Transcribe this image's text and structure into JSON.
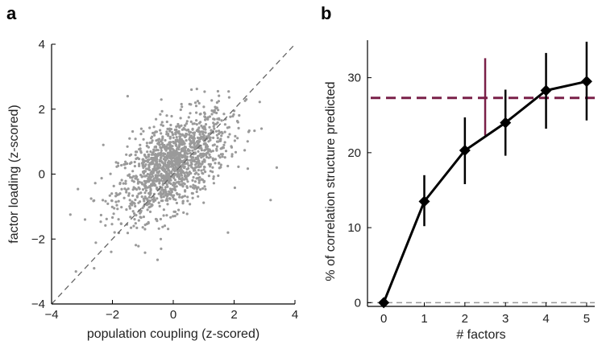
{
  "chart_data": [
    {
      "panel": "a",
      "type": "scatter",
      "xlabel": "population coupling (z-scored)",
      "ylabel": "factor loading (z-scored)",
      "xlim": [
        -4,
        4
      ],
      "ylim": [
        -4,
        4
      ],
      "xticks": [
        "−4",
        "−2",
        "0",
        "2",
        "4"
      ],
      "yticks": [
        "−4",
        "−2",
        "0",
        "2",
        "4"
      ],
      "identity_line": {
        "from": [
          -4,
          -4
        ],
        "to": [
          4,
          4
        ],
        "style": "dashed",
        "color": "#666666"
      },
      "point_color": "#9a9a9a",
      "point_cloud": {
        "count": 1400,
        "x_center": 0.0,
        "y_center": 0.3,
        "x_sd": 0.9,
        "y_sd": 0.8,
        "correlation": 0.55
      },
      "outliers": [
        {
          "x": -3.2,
          "y": -3.0
        },
        {
          "x": -2.6,
          "y": -2.9
        },
        {
          "x": -2.9,
          "y": -1.4
        },
        {
          "x": 3.4,
          "y": 0.2
        },
        {
          "x": 3.2,
          "y": -0.8
        },
        {
          "x": 2.4,
          "y": 2.3
        },
        {
          "x": -1.5,
          "y": 2.4
        },
        {
          "x": 1.8,
          "y": -1.8
        },
        {
          "x": 0.6,
          "y": 2.6
        },
        {
          "x": -2.3,
          "y": 0.9
        },
        {
          "x": 2.9,
          "y": 1.4
        },
        {
          "x": -0.4,
          "y": -2.3
        }
      ]
    },
    {
      "panel": "b",
      "type": "line",
      "xlabel": "# factors",
      "ylabel": "% of correlation structure predicted",
      "xlim": [
        -0.4,
        5.2
      ],
      "ylim": [
        -0.5,
        35
      ],
      "xticks": [
        "0",
        "1",
        "2",
        "3",
        "4",
        "5"
      ],
      "yticks": [
        "0",
        "10",
        "20",
        "30"
      ],
      "x": [
        0,
        1,
        2,
        3,
        4,
        5
      ],
      "y": [
        0,
        13.5,
        20.3,
        24.0,
        28.3,
        29.5
      ],
      "err_low": [
        0,
        10.2,
        15.8,
        19.6,
        23.2,
        24.3
      ],
      "err_high": [
        0,
        17.0,
        24.7,
        28.4,
        33.3,
        34.8
      ],
      "line_color": "#000000",
      "reference_line": {
        "y": 27.3,
        "color": "#7a2048",
        "style": "dashed"
      },
      "reference_bar": {
        "x": 2.5,
        "y_low": 22.3,
        "y_high": 32.6,
        "color": "#7a2048"
      },
      "zero_line": {
        "y": 0,
        "color": "#999999",
        "style": "dashed"
      }
    }
  ]
}
